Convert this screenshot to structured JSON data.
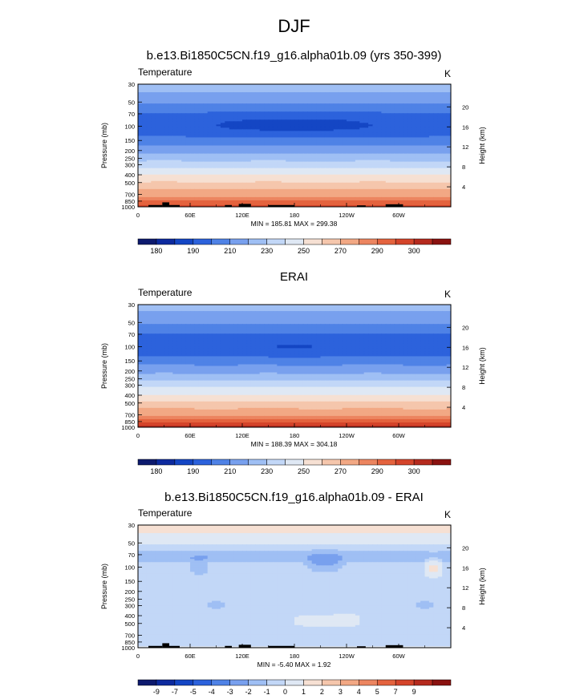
{
  "figure": {
    "title": "DJF"
  },
  "colors": {
    "temp": [
      "#0d1a6e",
      "#0d2a9e",
      "#1446c4",
      "#2c62dc",
      "#4f82e6",
      "#78a0ee",
      "#9fbff4",
      "#c2d7f7",
      "#dfe8f4",
      "#f6e0d3",
      "#f5c6ac",
      "#f2a884",
      "#ec8560",
      "#e4633e",
      "#d4442a",
      "#b52a1e",
      "#8a1210"
    ],
    "diff": [
      "#0d1a6e",
      "#0d2a9e",
      "#1446c4",
      "#2c62dc",
      "#4f82e6",
      "#78a0ee",
      "#9fbff4",
      "#c2d7f7",
      "#dfe8f4",
      "#f6e0d3",
      "#f5c6ac",
      "#f2a884",
      "#ec8560",
      "#e4633e",
      "#d4442a",
      "#b52a1e",
      "#8a1210"
    ]
  },
  "chart_data": [
    {
      "type": "heatmap",
      "title": "b.e13.Bi1850C5CN.f19_g16.alpha01b.09 (yrs 350-399)",
      "left_label": "Temperature",
      "right_label": "K",
      "ylabel": "Pressure (mb)",
      "ylabel_right": "Height (km)",
      "x_ticks": [
        "0",
        "60E",
        "120E",
        "180",
        "120W",
        "60W"
      ],
      "x_tick_values": [
        0,
        60,
        120,
        180,
        240,
        300
      ],
      "xlim": [
        0,
        360
      ],
      "y_ticks": [
        "30",
        "50",
        "70",
        "100",
        "150",
        "200",
        "250",
        "300",
        "400",
        "500",
        "700",
        "850",
        "1000"
      ],
      "y_tick_values": [
        30,
        50,
        70,
        100,
        150,
        200,
        250,
        300,
        400,
        500,
        700,
        850,
        1000
      ],
      "ylim": [
        30,
        1000
      ],
      "y_scale": "log",
      "height_ticks": [
        "20",
        "16",
        "12",
        "8",
        "4"
      ],
      "height_tick_values": [
        20,
        16,
        12,
        8,
        4
      ],
      "stats": "MIN = 185.81  MAX = 299.38",
      "colorbar_labels": [
        "180",
        "190",
        "210",
        "230",
        "250",
        "270",
        "290",
        "300"
      ],
      "levels": [
        175,
        180,
        185,
        190,
        200,
        210,
        220,
        230,
        240,
        250,
        260,
        270,
        280,
        285,
        290,
        295,
        300
      ],
      "profile_pressures": [
        30,
        45,
        60,
        75,
        90,
        100,
        120,
        150,
        200,
        250,
        300,
        400,
        500,
        600,
        700,
        850,
        1000
      ],
      "profile_values": [
        227,
        215,
        204,
        197,
        194,
        193,
        196,
        204,
        216,
        226,
        236,
        250,
        261,
        270,
        277,
        285,
        293
      ],
      "features": [
        {
          "kind": "cold_pocket",
          "lon_center": 180,
          "lon_halfwidth": 95,
          "p_center": 95,
          "amplitude": -7
        }
      ],
      "topography": [
        [
          12,
          28,
          950
        ],
        [
          28,
          36,
          880
        ],
        [
          36,
          48,
          950
        ],
        [
          100,
          108,
          950
        ],
        [
          116,
          130,
          920
        ],
        [
          150,
          180,
          950
        ],
        [
          252,
          262,
          960
        ],
        [
          285,
          305,
          930
        ]
      ]
    },
    {
      "type": "heatmap",
      "title": "ERAI",
      "left_label": "Temperature",
      "right_label": "K",
      "ylabel": "Pressure (mb)",
      "ylabel_right": "Height (km)",
      "x_ticks": [
        "0",
        "60E",
        "120E",
        "180",
        "120W",
        "60W"
      ],
      "x_tick_values": [
        0,
        60,
        120,
        180,
        240,
        300
      ],
      "xlim": [
        0,
        360
      ],
      "y_ticks": [
        "30",
        "50",
        "70",
        "100",
        "150",
        "200",
        "250",
        "300",
        "400",
        "500",
        "700",
        "850",
        "1000"
      ],
      "y_tick_values": [
        30,
        50,
        70,
        100,
        150,
        200,
        250,
        300,
        400,
        500,
        700,
        850,
        1000
      ],
      "ylim": [
        30,
        1000
      ],
      "y_scale": "log",
      "height_ticks": [
        "20",
        "16",
        "12",
        "8",
        "4"
      ],
      "height_tick_values": [
        20,
        16,
        12,
        8,
        4
      ],
      "stats": "MIN = 188.39  MAX = 304.18",
      "colorbar_labels": [
        "180",
        "190",
        "210",
        "230",
        "250",
        "270",
        "290",
        "300"
      ],
      "levels": [
        175,
        180,
        185,
        190,
        200,
        210,
        220,
        230,
        240,
        250,
        260,
        270,
        280,
        285,
        290,
        295,
        300
      ],
      "profile_pressures": [
        30,
        45,
        60,
        75,
        90,
        100,
        120,
        150,
        200,
        250,
        300,
        400,
        500,
        600,
        700,
        850,
        1000
      ],
      "profile_values": [
        226,
        214,
        205,
        198,
        195,
        194,
        197,
        205,
        217,
        227,
        237,
        251,
        262,
        271,
        279,
        288,
        297
      ],
      "features": [
        {
          "kind": "cold_pocket",
          "lon_center": 180,
          "lon_halfwidth": 35,
          "p_center": 100,
          "amplitude": -5
        }
      ],
      "topography": []
    },
    {
      "type": "heatmap",
      "title": "b.e13.Bi1850C5CN.f19_g16.alpha01b.09 - ERAI",
      "left_label": "Temperature",
      "right_label": "K",
      "ylabel": "Pressure (mb)",
      "ylabel_right": "Height (km)",
      "x_ticks": [
        "0",
        "60E",
        "120E",
        "180",
        "120W",
        "60W"
      ],
      "x_tick_values": [
        0,
        60,
        120,
        180,
        240,
        300
      ],
      "xlim": [
        0,
        360
      ],
      "y_ticks": [
        "30",
        "50",
        "70",
        "100",
        "150",
        "200",
        "250",
        "300",
        "400",
        "500",
        "700",
        "850",
        "1000"
      ],
      "y_tick_values": [
        30,
        50,
        70,
        100,
        150,
        200,
        250,
        300,
        400,
        500,
        700,
        850,
        1000
      ],
      "ylim": [
        30,
        1000
      ],
      "y_scale": "log",
      "height_ticks": [
        "20",
        "16",
        "12",
        "8",
        "4"
      ],
      "height_tick_values": [
        20,
        16,
        12,
        8,
        4
      ],
      "stats": "MIN = -5.40  MAX =  1.92",
      "colorbar_labels": [
        "-9",
        "-7",
        "-5",
        "-4",
        "-3",
        "-2",
        "-1",
        "0",
        "1",
        "2",
        "3",
        "4",
        "5",
        "7",
        "9"
      ],
      "levels": [
        -9,
        -8,
        -7,
        -6,
        -5,
        -4,
        -3,
        -2,
        -1,
        0,
        1,
        2,
        3,
        4,
        5,
        7,
        9
      ],
      "profile_pressures": [
        30,
        35,
        45,
        55,
        65,
        75,
        90,
        110,
        150,
        200,
        300,
        400,
        500,
        600,
        700,
        850,
        1000
      ],
      "profile_values": [
        0.5,
        0.2,
        -0.6,
        -1.2,
        -2.2,
        -2.8,
        -1.8,
        -1.3,
        -1.5,
        -1.6,
        -1.7,
        -1.6,
        -1.5,
        -1.6,
        -1.7,
        -1.4,
        -0.8
      ],
      "features": [
        {
          "kind": "cold_pocket",
          "lon_center": 70,
          "lon_halfwidth": 10,
          "p_center": 100,
          "amplitude": -1.2
        },
        {
          "kind": "cold_pocket",
          "lon_center": 215,
          "lon_halfwidth": 20,
          "p_center": 90,
          "amplitude": -1.4
        },
        {
          "kind": "warm_pocket",
          "lon_center": 215,
          "lon_halfwidth": 40,
          "p_center": 450,
          "amplitude": 1.1
        },
        {
          "kind": "warm_pocket",
          "lon_center": 340,
          "lon_halfwidth": 10,
          "p_center": 100,
          "amplitude": 1.8
        }
      ],
      "topography": [
        [
          12,
          28,
          950
        ],
        [
          28,
          36,
          880
        ],
        [
          36,
          48,
          950
        ],
        [
          100,
          108,
          950
        ],
        [
          116,
          130,
          920
        ],
        [
          150,
          180,
          950
        ],
        [
          252,
          262,
          960
        ],
        [
          285,
          305,
          930
        ]
      ]
    }
  ]
}
